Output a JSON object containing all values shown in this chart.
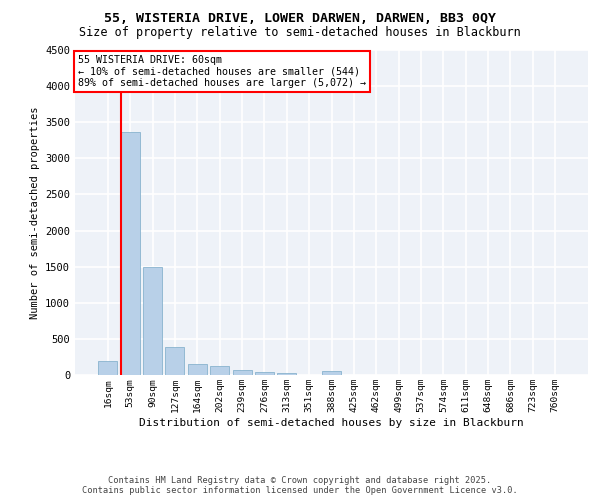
{
  "title_line1": "55, WISTERIA DRIVE, LOWER DARWEN, DARWEN, BB3 0QY",
  "title_line2": "Size of property relative to semi-detached houses in Blackburn",
  "xlabel": "Distribution of semi-detached houses by size in Blackburn",
  "ylabel": "Number of semi-detached properties",
  "categories": [
    "16sqm",
    "53sqm",
    "90sqm",
    "127sqm",
    "164sqm",
    "202sqm",
    "239sqm",
    "276sqm",
    "313sqm",
    "351sqm",
    "388sqm",
    "425sqm",
    "462sqm",
    "499sqm",
    "537sqm",
    "574sqm",
    "611sqm",
    "648sqm",
    "686sqm",
    "723sqm",
    "760sqm"
  ],
  "values": [
    200,
    3370,
    1500,
    390,
    150,
    130,
    70,
    45,
    30,
    0,
    50,
    0,
    0,
    0,
    0,
    0,
    0,
    0,
    0,
    0,
    0
  ],
  "bar_color": "#b8d0e8",
  "bar_edge_color": "#7aaac8",
  "vline_color": "red",
  "vline_x": 0.575,
  "annotation_title": "55 WISTERIA DRIVE: 60sqm",
  "annotation_line2": "← 10% of semi-detached houses are smaller (544)",
  "annotation_line3": "89% of semi-detached houses are larger (5,072) →",
  "annotation_box_color": "white",
  "annotation_box_edge_color": "red",
  "ylim": [
    0,
    4500
  ],
  "yticks": [
    0,
    500,
    1000,
    1500,
    2000,
    2500,
    3000,
    3500,
    4000,
    4500
  ],
  "footer_line1": "Contains HM Land Registry data © Crown copyright and database right 2025.",
  "footer_line2": "Contains public sector information licensed under the Open Government Licence v3.0.",
  "bg_color": "#eef2f8",
  "grid_color": "white"
}
